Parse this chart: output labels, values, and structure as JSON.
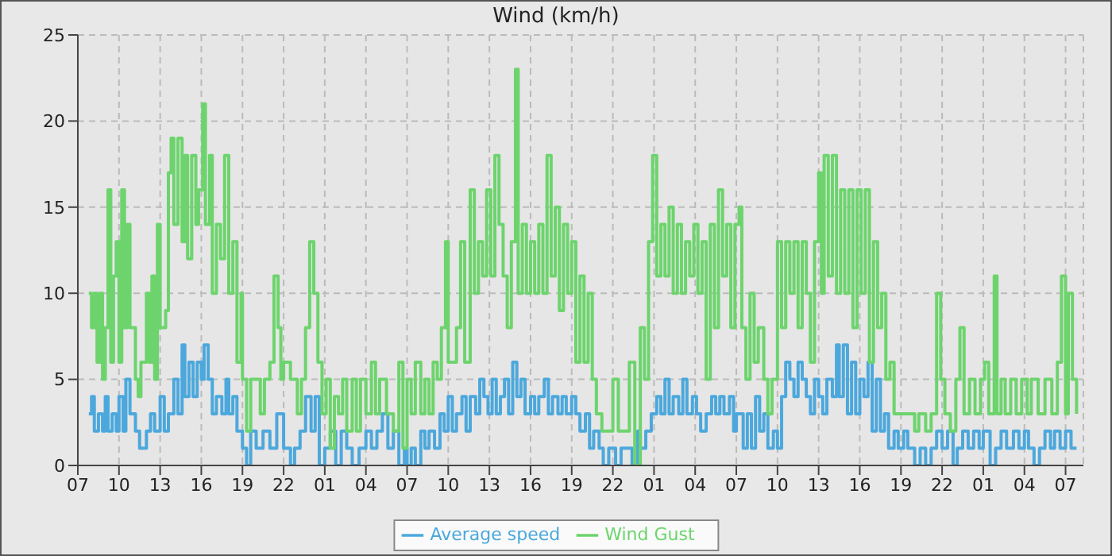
{
  "chart_data": {
    "type": "step",
    "title": "Wind (km/h)",
    "xlim": [
      "--01-01T07:00",
      "--01-04T08:18"
    ],
    "ylim": [
      0,
      25
    ],
    "yticks": [
      0,
      5,
      10,
      15,
      20,
      25
    ],
    "xticks": [
      {
        "value": "--01-01T07:00",
        "label": "07"
      },
      {
        "value": "--01-01T10:00",
        "label": "10"
      },
      {
        "value": "--01-01T13:00",
        "label": "13"
      },
      {
        "value": "--01-01T16:00",
        "label": "16"
      },
      {
        "value": "--01-01T19:00",
        "label": "19"
      },
      {
        "value": "--01-01T22:00",
        "label": "22"
      },
      {
        "value": "--01-02T01:00",
        "label": "01"
      },
      {
        "value": "--01-02T04:00",
        "label": "04"
      },
      {
        "value": "--01-02T07:00",
        "label": "07"
      },
      {
        "value": "--01-02T10:00",
        "label": "10"
      },
      {
        "value": "--01-02T13:00",
        "label": "13"
      },
      {
        "value": "--01-02T16:00",
        "label": "16"
      },
      {
        "value": "--01-02T19:00",
        "label": "19"
      },
      {
        "value": "--01-02T22:00",
        "label": "22"
      },
      {
        "value": "--01-03T01:00",
        "label": "01"
      },
      {
        "value": "--01-03T04:00",
        "label": "04"
      },
      {
        "value": "--01-03T07:00",
        "label": "07"
      },
      {
        "value": "--01-03T10:00",
        "label": "10"
      },
      {
        "value": "--01-03T13:00",
        "label": "13"
      },
      {
        "value": "--01-03T16:00",
        "label": "16"
      },
      {
        "value": "--01-03T19:00",
        "label": "19"
      },
      {
        "value": "--01-03T22:00",
        "label": "22"
      },
      {
        "value": "--01-04T01:00",
        "label": "01"
      },
      {
        "value": "--01-04T04:00",
        "label": "04"
      },
      {
        "value": "--01-04T07:00",
        "label": "07"
      }
    ],
    "grid": true,
    "legend": "bottom",
    "line_style": "solid",
    "marker": "none",
    "series": [
      {
        "name": "Average speed",
        "color": "#4ca8dc",
        "x": [
          "--01-01T07:48",
          "--01-01T08:00",
          "--01-01T08:12",
          "--01-01T08:30",
          "--01-01T08:48",
          "--01-01T09:00",
          "--01-01T09:12",
          "--01-01T09:30",
          "--01-01T09:48",
          "--01-01T10:00",
          "--01-01T10:18",
          "--01-01T10:30",
          "--01-01T10:48",
          "--01-01T11:12",
          "--01-01T11:30",
          "--01-01T12:00",
          "--01-01T12:18",
          "--01-01T12:36",
          "--01-01T13:00",
          "--01-01T13:18",
          "--01-01T13:36",
          "--01-01T14:00",
          "--01-01T14:18",
          "--01-01T14:36",
          "--01-01T14:48",
          "--01-01T15:06",
          "--01-01T15:24",
          "--01-01T15:42",
          "--01-01T16:00",
          "--01-01T16:12",
          "--01-01T16:30",
          "--01-01T16:48",
          "--01-01T17:06",
          "--01-01T17:30",
          "--01-01T17:48",
          "--01-01T18:00",
          "--01-01T18:18",
          "--01-01T18:36",
          "--01-01T19:00",
          "--01-01T19:18",
          "--01-01T19:36",
          "--01-01T20:00",
          "--01-01T20:30",
          "--01-01T21:00",
          "--01-01T21:30",
          "--01-01T22:00",
          "--01-01T22:30",
          "--01-01T22:48",
          "--01-01T23:12",
          "--01-01T23:36",
          "--01-02T00:00",
          "--01-02T00:18",
          "--01-02T00:36",
          "--01-02T01:00",
          "--01-02T01:24",
          "--01-02T01:48",
          "--01-02T02:12",
          "--01-02T02:36",
          "--01-02T03:00",
          "--01-02T03:30",
          "--01-02T04:00",
          "--01-02T04:24",
          "--01-02T04:48",
          "--01-02T05:12",
          "--01-02T05:36",
          "--01-02T06:00",
          "--01-02T06:24",
          "--01-02T06:48",
          "--01-02T07:00",
          "--01-02T07:18",
          "--01-02T07:36",
          "--01-02T08:00",
          "--01-02T08:18",
          "--01-02T08:36",
          "--01-02T09:00",
          "--01-02T09:24",
          "--01-02T09:42",
          "--01-02T10:00",
          "--01-02T10:18",
          "--01-02T10:36",
          "--01-02T11:00",
          "--01-02T11:18",
          "--01-02T11:36",
          "--01-02T12:00",
          "--01-02T12:18",
          "--01-02T12:36",
          "--01-02T12:54",
          "--01-02T13:12",
          "--01-02T13:30",
          "--01-02T13:48",
          "--01-02T14:06",
          "--01-02T14:24",
          "--01-02T14:42",
          "--01-02T15:00",
          "--01-02T15:18",
          "--01-02T15:36",
          "--01-02T16:00",
          "--01-02T16:18",
          "--01-02T16:36",
          "--01-02T17:00",
          "--01-02T17:18",
          "--01-02T17:36",
          "--01-02T18:00",
          "--01-02T18:18",
          "--01-02T18:36",
          "--01-02T19:00",
          "--01-02T19:18",
          "--01-02T19:36",
          "--01-02T20:00",
          "--01-02T20:18",
          "--01-02T20:36",
          "--01-02T21:00",
          "--01-02T21:18",
          "--01-02T21:42",
          "--01-02T22:12",
          "--01-02T22:36",
          "--01-02T23:00",
          "--01-02T23:24",
          "--01-02T23:48",
          "--01-03T00:00",
          "--01-03T00:24",
          "--01-03T00:48",
          "--01-03T01:12",
          "--01-03T01:30",
          "--01-03T01:48",
          "--01-03T02:06",
          "--01-03T02:24",
          "--01-03T02:48",
          "--01-03T03:06",
          "--01-03T03:24",
          "--01-03T03:48",
          "--01-03T04:06",
          "--01-03T04:24",
          "--01-03T04:48",
          "--01-03T05:12",
          "--01-03T05:30",
          "--01-03T05:48",
          "--01-03T06:06",
          "--01-03T06:30",
          "--01-03T06:48",
          "--01-03T07:00",
          "--01-03T07:12",
          "--01-03T07:30",
          "--01-03T07:48",
          "--01-03T08:06",
          "--01-03T08:24",
          "--01-03T08:42",
          "--01-03T09:00",
          "--01-03T09:18",
          "--01-03T09:42",
          "--01-03T10:00",
          "--01-03T10:18",
          "--01-03T10:36",
          "--01-03T10:54",
          "--01-03T11:12",
          "--01-03T11:30",
          "--01-03T11:48",
          "--01-03T12:06",
          "--01-03T12:24",
          "--01-03T12:42",
          "--01-03T13:00",
          "--01-03T13:18",
          "--01-03T13:36",
          "--01-03T14:00",
          "--01-03T14:18",
          "--01-03T14:30",
          "--01-03T14:48",
          "--01-03T15:06",
          "--01-03T15:24",
          "--01-03T15:42",
          "--01-03T16:00",
          "--01-03T16:18",
          "--01-03T16:36",
          "--01-03T16:54",
          "--01-03T17:12",
          "--01-03T17:30",
          "--01-03T17:48",
          "--01-03T18:06",
          "--01-03T18:30",
          "--01-03T18:48",
          "--01-03T19:12",
          "--01-03T19:30",
          "--01-03T20:00",
          "--01-03T20:24",
          "--01-03T20:48",
          "--01-03T21:12",
          "--01-03T21:36",
          "--01-03T22:00",
          "--01-03T22:24",
          "--01-03T22:48",
          "--01-03T23:06",
          "--01-03T23:30",
          "--01-03T23:54",
          "--01-04T00:18",
          "--01-04T00:42",
          "--01-04T01:00",
          "--01-04T01:30",
          "--01-04T01:54",
          "--01-04T02:18",
          "--01-04T02:42",
          "--01-04T03:12",
          "--01-04T03:36",
          "--01-04T04:00",
          "--01-04T04:18",
          "--01-04T04:42",
          "--01-04T05:06",
          "--01-04T05:30",
          "--01-04T05:54",
          "--01-04T06:12",
          "--01-04T06:36",
          "--01-04T07:00",
          "--01-04T07:24",
          "--01-04T07:48"
        ],
        "values": [
          3,
          4,
          2,
          3,
          2,
          4,
          2,
          3,
          2,
          4,
          2,
          5,
          3,
          2,
          1,
          2,
          3,
          2,
          4,
          2,
          3,
          5,
          3,
          7,
          4,
          6,
          4,
          6,
          5,
          7,
          5,
          3,
          4,
          3,
          5,
          3,
          4,
          2,
          1,
          0,
          2,
          1,
          2,
          1,
          3,
          1,
          0,
          1,
          2,
          4,
          2,
          4,
          0,
          1,
          2,
          0,
          2,
          1,
          0,
          1,
          2,
          1,
          2,
          3,
          1,
          2,
          0,
          1,
          0,
          1,
          0,
          2,
          1,
          2,
          1,
          3,
          2,
          4,
          2,
          3,
          4,
          2,
          4,
          3,
          5,
          4,
          3,
          5,
          3,
          4,
          5,
          3,
          6,
          4,
          5,
          3,
          4,
          3,
          4,
          5,
          3,
          4,
          3,
          4,
          3,
          4,
          3,
          2,
          3,
          1,
          2,
          1,
          0,
          1,
          0,
          1,
          1,
          0,
          2,
          1,
          2,
          3,
          4,
          3,
          5,
          3,
          4,
          3,
          5,
          3,
          4,
          3,
          2,
          3,
          4,
          3,
          4,
          3,
          4,
          2,
          3,
          3,
          1,
          3,
          1,
          4,
          2,
          3,
          1,
          2,
          1,
          4,
          6,
          5,
          4,
          6,
          5,
          4,
          3,
          5,
          4,
          3,
          5,
          4,
          7,
          4,
          7,
          3,
          6,
          3,
          5,
          4,
          6,
          2,
          5,
          2,
          3,
          1,
          2,
          1,
          2,
          1,
          0,
          1,
          0,
          1,
          2,
          1,
          2,
          0,
          1,
          2,
          1,
          2,
          1,
          2,
          0,
          1,
          2,
          1,
          2,
          1,
          2,
          1,
          0,
          1,
          2,
          1,
          2,
          1,
          2,
          1,
          1
        ]
      },
      {
        "name": "Wind Gust",
        "color": "#6dd46d",
        "x": [
          "--01-01T07:48",
          "--01-01T08:00",
          "--01-01T08:12",
          "--01-01T08:24",
          "--01-01T08:36",
          "--01-01T08:48",
          "--01-01T09:00",
          "--01-01T09:12",
          "--01-01T09:24",
          "--01-01T09:36",
          "--01-01T09:48",
          "--01-01T10:00",
          "--01-01T10:12",
          "--01-01T10:24",
          "--01-01T10:36",
          "--01-01T10:48",
          "--01-01T11:12",
          "--01-01T11:24",
          "--01-01T11:36",
          "--01-01T12:00",
          "--01-01T12:12",
          "--01-01T12:24",
          "--01-01T12:36",
          "--01-01T12:48",
          "--01-01T13:00",
          "--01-01T13:24",
          "--01-01T13:36",
          "--01-01T13:48",
          "--01-01T14:00",
          "--01-01T14:18",
          "--01-01T14:36",
          "--01-01T14:48",
          "--01-01T15:00",
          "--01-01T15:18",
          "--01-01T15:36",
          "--01-01T15:48",
          "--01-01T16:06",
          "--01-01T16:18",
          "--01-01T16:36",
          "--01-01T16:48",
          "--01-01T17:06",
          "--01-01T17:24",
          "--01-01T17:42",
          "--01-01T18:00",
          "--01-01T18:18",
          "--01-01T18:36",
          "--01-01T18:54",
          "--01-01T19:00",
          "--01-01T19:18",
          "--01-01T19:36",
          "--01-01T20:18",
          "--01-01T20:36",
          "--01-01T21:00",
          "--01-01T21:18",
          "--01-01T21:36",
          "--01-01T21:48",
          "--01-01T22:00",
          "--01-01T22:30",
          "--01-01T23:00",
          "--01-01T23:18",
          "--01-01T23:36",
          "--01-01T23:54",
          "--01-02T00:12",
          "--01-02T00:30",
          "--01-02T00:48",
          "--01-02T01:06",
          "--01-02T01:24",
          "--01-02T01:42",
          "--01-02T02:00",
          "--01-02T02:18",
          "--01-02T02:36",
          "--01-02T03:00",
          "--01-02T03:18",
          "--01-02T03:36",
          "--01-02T04:00",
          "--01-02T04:24",
          "--01-02T04:42",
          "--01-02T05:00",
          "--01-02T05:30",
          "--01-02T06:00",
          "--01-02T06:24",
          "--01-02T06:42",
          "--01-02T07:00",
          "--01-02T07:18",
          "--01-02T07:36",
          "--01-02T08:00",
          "--01-02T08:18",
          "--01-02T08:36",
          "--01-02T08:54",
          "--01-02T09:12",
          "--01-02T09:30",
          "--01-02T09:48",
          "--01-02T10:00",
          "--01-02T10:18",
          "--01-02T10:36",
          "--01-02T10:54",
          "--01-02T11:12",
          "--01-02T11:36",
          "--01-02T11:54",
          "--01-02T12:12",
          "--01-02T12:30",
          "--01-02T12:48",
          "--01-02T13:06",
          "--01-02T13:24",
          "--01-02T13:42",
          "--01-02T14:00",
          "--01-02T14:18",
          "--01-02T14:36",
          "--01-02T14:54",
          "--01-02T15:06",
          "--01-02T15:24",
          "--01-02T15:42",
          "--01-02T16:00",
          "--01-02T16:18",
          "--01-02T16:36",
          "--01-02T16:54",
          "--01-02T17:12",
          "--01-02T17:30",
          "--01-02T17:48",
          "--01-02T18:06",
          "--01-02T18:24",
          "--01-02T18:42",
          "--01-02T19:00",
          "--01-02T19:18",
          "--01-02T19:36",
          "--01-02T19:54",
          "--01-02T20:12",
          "--01-02T20:30",
          "--01-02T20:48",
          "--01-02T21:12",
          "--01-02T22:00",
          "--01-02T22:24",
          "--01-02T23:12",
          "--01-02T23:36",
          "--01-03T00:00",
          "--01-03T00:18",
          "--01-03T00:36",
          "--01-03T00:54",
          "--01-03T01:12",
          "--01-03T01:30",
          "--01-03T01:48",
          "--01-03T02:06",
          "--01-03T02:24",
          "--01-03T02:42",
          "--01-03T03:00",
          "--01-03T03:18",
          "--01-03T03:36",
          "--01-03T03:54",
          "--01-03T04:12",
          "--01-03T04:30",
          "--01-03T04:48",
          "--01-03T05:06",
          "--01-03T05:24",
          "--01-03T05:42",
          "--01-03T06:00",
          "--01-03T06:18",
          "--01-03T06:36",
          "--01-03T06:54",
          "--01-03T07:12",
          "--01-03T07:24",
          "--01-03T07:42",
          "--01-03T08:00",
          "--01-03T08:18",
          "--01-03T08:36",
          "--01-03T09:00",
          "--01-03T09:18",
          "--01-03T09:36",
          "--01-03T10:00",
          "--01-03T10:18",
          "--01-03T10:36",
          "--01-03T10:54",
          "--01-03T11:12",
          "--01-03T11:30",
          "--01-03T11:48",
          "--01-03T12:06",
          "--01-03T12:24",
          "--01-03T12:42",
          "--01-03T13:00",
          "--01-03T13:12",
          "--01-03T13:24",
          "--01-03T13:42",
          "--01-03T14:00",
          "--01-03T14:18",
          "--01-03T14:36",
          "--01-03T14:54",
          "--01-03T15:12",
          "--01-03T15:30",
          "--01-03T15:48",
          "--01-03T16:06",
          "--01-03T16:24",
          "--01-03T16:42",
          "--01-03T17:00",
          "--01-03T17:18",
          "--01-03T17:36",
          "--01-03T17:54",
          "--01-03T18:12",
          "--01-03T18:30",
          "--01-03T20:00",
          "--01-03T20:18",
          "--01-03T20:48",
          "--01-03T21:12",
          "--01-03T21:36",
          "--01-03T21:54",
          "--01-03T22:12",
          "--01-03T22:36",
          "--01-03T23:00",
          "--01-03T23:18",
          "--01-03T23:36",
          "--01-04T00:00",
          "--01-04T00:24",
          "--01-04T00:48",
          "--01-04T01:06",
          "--01-04T01:24",
          "--01-04T01:48",
          "--01-04T02:00",
          "--01-04T02:18",
          "--01-04T02:36",
          "--01-04T03:00",
          "--01-04T03:24",
          "--01-04T03:48",
          "--01-04T04:12",
          "--01-04T04:30",
          "--01-04T05:00",
          "--01-04T05:30",
          "--01-04T06:00",
          "--01-04T06:24",
          "--01-04T06:42",
          "--01-04T07:00",
          "--01-04T07:12",
          "--01-04T07:30",
          "--01-04T07:48"
        ],
        "values": [
          10,
          8,
          10,
          6,
          10,
          5,
          8,
          16,
          6,
          11,
          13,
          6,
          16,
          8,
          14,
          8,
          5,
          4,
          6,
          10,
          6,
          11,
          5,
          14,
          8,
          9,
          17,
          19,
          14,
          19,
          13,
          18,
          12,
          18,
          14,
          16,
          21,
          14,
          18,
          10,
          14,
          12,
          18,
          10,
          13,
          6,
          10,
          5,
          2,
          5,
          3,
          5,
          6,
          11,
          8,
          5,
          6,
          5,
          3,
          5,
          8,
          13,
          10,
          6,
          3,
          5,
          1,
          4,
          3,
          5,
          2,
          5,
          2,
          5,
          3,
          6,
          3,
          5,
          3,
          2,
          6,
          1,
          5,
          3,
          6,
          3,
          5,
          3,
          6,
          5,
          8,
          13,
          6,
          6,
          8,
          13,
          6,
          16,
          10,
          13,
          11,
          16,
          11,
          18,
          14,
          11,
          8,
          13,
          23,
          10,
          14,
          10,
          13,
          10,
          14,
          10,
          18,
          11,
          15,
          9,
          14,
          10,
          13,
          6,
          11,
          6,
          10,
          5,
          3,
          2,
          5,
          2,
          6,
          0,
          8,
          5,
          13,
          18,
          11,
          14,
          11,
          15,
          10,
          14,
          10,
          13,
          11,
          14,
          10,
          13,
          5,
          14,
          8,
          16,
          11,
          14,
          8,
          14,
          15,
          8,
          5,
          10,
          6,
          8,
          5,
          3,
          5,
          13,
          8,
          13,
          10,
          13,
          8,
          13,
          10,
          6,
          13,
          17,
          10,
          18,
          11,
          18,
          10,
          16,
          10,
          16,
          8,
          16,
          10,
          16,
          6,
          13,
          8,
          10,
          5,
          6,
          3,
          2,
          3,
          2,
          3,
          10,
          5,
          3,
          2,
          5,
          8,
          3,
          5,
          3,
          5,
          6,
          3,
          11,
          3,
          5,
          3,
          5,
          3,
          5,
          3,
          5,
          3,
          5,
          3,
          6,
          11,
          3,
          10,
          5,
          3
        ]
      }
    ]
  }
}
